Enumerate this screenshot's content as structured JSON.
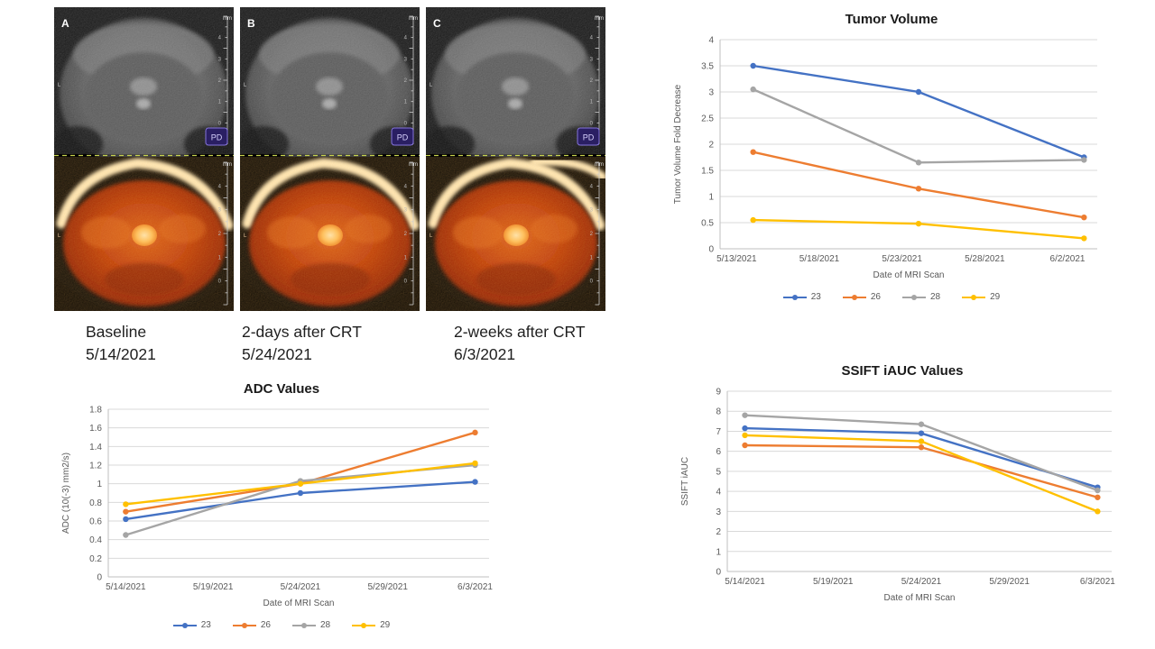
{
  "mri_section": {
    "panels": [
      {
        "letter": "A",
        "caption_line1": "Baseline",
        "caption_line2": "5/14/2021"
      },
      {
        "letter": "B",
        "caption_line1": "2-days after CRT",
        "caption_line2": "5/24/2021"
      },
      {
        "letter": "C",
        "caption_line1": "2-weeks after CRT",
        "caption_line2": "6/3/2021"
      }
    ],
    "orientation_label": "L",
    "ruler_unit": "mm",
    "ruler_numbers": [
      "4",
      "3",
      "2",
      "1",
      "0"
    ],
    "logo_text": "PD"
  },
  "chart_data": [
    {
      "type": "line",
      "title": "Tumor Volume",
      "xlabel": "Date of MRI Scan",
      "ylabel": "Tumor Volume Fold  Decrease",
      "x_ticks": [
        "5/13/2021",
        "5/18/2021",
        "5/23/2021",
        "5/28/2021",
        "6/2/2021"
      ],
      "x": [
        "5/14/2021",
        "5/24/2021",
        "6/3/2021"
      ],
      "ylim": [
        0,
        4
      ],
      "y_step": 0.5,
      "grid": true,
      "legend": true,
      "legend_position": "bottom",
      "series": [
        {
          "name": "23",
          "color": "#4472C4",
          "values": [
            3.5,
            3.0,
            1.75
          ]
        },
        {
          "name": "26",
          "color": "#ED7D31",
          "values": [
            1.85,
            1.15,
            0.6
          ]
        },
        {
          "name": "28",
          "color": "#A5A5A5",
          "values": [
            3.05,
            1.65,
            1.7
          ]
        },
        {
          "name": "29",
          "color": "#FFC000",
          "values": [
            0.55,
            0.48,
            0.2
          ]
        }
      ]
    },
    {
      "type": "line",
      "title": "ADC Values",
      "xlabel": "Date of MRI Scan",
      "ylabel": "ADC (10(-3)  mm2/s)",
      "x_ticks": [
        "5/14/2021",
        "5/19/2021",
        "5/24/2021",
        "5/29/2021",
        "6/3/2021"
      ],
      "x": [
        "5/14/2021",
        "5/24/2021",
        "6/3/2021"
      ],
      "ylim": [
        0,
        1.8
      ],
      "y_step": 0.2,
      "grid": true,
      "legend": true,
      "legend_position": "bottom",
      "series": [
        {
          "name": "23",
          "color": "#4472C4",
          "values": [
            0.62,
            0.9,
            1.02
          ]
        },
        {
          "name": "26",
          "color": "#ED7D31",
          "values": [
            0.7,
            1.0,
            1.55
          ]
        },
        {
          "name": "28",
          "color": "#A5A5A5",
          "values": [
            0.45,
            1.03,
            1.2
          ]
        },
        {
          "name": "29",
          "color": "#FFC000",
          "values": [
            0.78,
            1.0,
            1.22
          ]
        }
      ]
    },
    {
      "type": "line",
      "title": "SSIFT iAUC Values",
      "xlabel": "Date of MRI Scan",
      "ylabel": "SSIFT iAUC",
      "x_ticks": [
        "5/14/2021",
        "5/19/2021",
        "5/24/2021",
        "5/29/2021",
        "6/3/2021"
      ],
      "x": [
        "5/14/2021",
        "5/24/2021",
        "6/3/2021"
      ],
      "ylim": [
        0,
        9
      ],
      "y_step": 1,
      "grid": true,
      "legend": false,
      "series": [
        {
          "name": "23",
          "color": "#4472C4",
          "values": [
            7.15,
            6.9,
            4.2
          ]
        },
        {
          "name": "26",
          "color": "#ED7D31",
          "values": [
            6.3,
            6.2,
            3.7
          ]
        },
        {
          "name": "28",
          "color": "#A5A5A5",
          "values": [
            7.8,
            7.35,
            4.05
          ]
        },
        {
          "name": "29",
          "color": "#FFC000",
          "values": [
            6.8,
            6.5,
            3.0
          ]
        }
      ]
    }
  ]
}
